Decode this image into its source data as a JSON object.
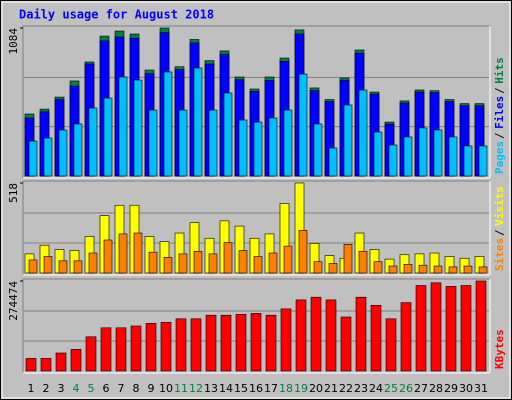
{
  "chart_data": [
    {
      "type": "bar",
      "title": "Daily usage for August 2018",
      "ylim": [
        0,
        1084
      ],
      "yticks": [
        1084
      ],
      "series": [
        {
          "name": "Hits",
          "color": "#008040",
          "values": [
            454,
            490,
            578,
            696,
            835,
            1025,
            1062,
            1040,
            776,
            1084,
            800,
            1000,
            845,
            916,
            725,
            637,
            725,
            864,
            1070,
            645,
            560,
            718,
            923,
            615,
            395,
            550,
            630,
            625,
            560,
            530,
            530
          ]
        },
        {
          "name": "Files",
          "color": "#0000ff",
          "values": [
            425,
            470,
            560,
            659,
            820,
            990,
            1018,
            1010,
            750,
            1050,
            780,
            975,
            820,
            890,
            705,
            620,
            700,
            840,
            1040,
            625,
            545,
            700,
            900,
            600,
            380,
            535,
            615,
            610,
            545,
            515,
            515
          ]
        },
        {
          "name": "Pages",
          "color": "#00c0ff",
          "values": [
            256,
            278,
            337,
            381,
            498,
            571,
            725,
            703,
            483,
            762,
            483,
            791,
            483,
            608,
            410,
            395,
            425,
            483,
            747,
            381,
            205,
            520,
            630,
            322,
            227,
            286,
            352,
            337,
            286,
            220,
            220
          ]
        }
      ]
    },
    {
      "type": "bar",
      "ylim": [
        0,
        518
      ],
      "yticks": [
        518
      ],
      "series": [
        {
          "name": "Visits",
          "color": "#ffff00",
          "values": [
            110,
            160,
            135,
            130,
            210,
            330,
            390,
            390,
            210,
            180,
            230,
            290,
            200,
            300,
            270,
            200,
            225,
            400,
            518,
            170,
            100,
            85,
            230,
            135,
            80,
            105,
            110,
            115,
            95,
            85,
            95
          ]
        },
        {
          "name": "Sites",
          "color": "#ff8000",
          "values": [
            75,
            95,
            70,
            70,
            115,
            190,
            225,
            230,
            120,
            90,
            110,
            125,
            110,
            175,
            130,
            95,
            115,
            155,
            245,
            65,
            55,
            165,
            125,
            65,
            40,
            50,
            45,
            40,
            35,
            40,
            35
          ]
        }
      ]
    },
    {
      "type": "bar",
      "ylim": [
        0,
        274474
      ],
      "yticks": [
        274474
      ],
      "categories": [
        "1",
        "2",
        "3",
        "4",
        "5",
        "6",
        "7",
        "8",
        "9",
        "10",
        "11",
        "12",
        "13",
        "14",
        "15",
        "16",
        "17",
        "18",
        "19",
        "20",
        "21",
        "22",
        "23",
        "24",
        "25",
        "26",
        "27",
        "28",
        "29",
        "30",
        "31"
      ],
      "category_colors": [
        "#000000",
        "#000000",
        "#000000",
        "#008040",
        "#008040",
        "#000000",
        "#000000",
        "#000000",
        "#000000",
        "#000000",
        "#008040",
        "#008040",
        "#000000",
        "#000000",
        "#000000",
        "#000000",
        "#000000",
        "#008040",
        "#008040",
        "#000000",
        "#000000",
        "#000000",
        "#000000",
        "#000000",
        "#008040",
        "#008040",
        "#000000",
        "#000000",
        "#000000",
        "#000000",
        "#000000"
      ],
      "series": [
        {
          "name": "KBytes",
          "color": "#ff0000",
          "values": [
            38426,
            38426,
            54895,
            65874,
            104300,
            131748,
            131748,
            137237,
            145471,
            148216,
            159195,
            159195,
            170174,
            170174,
            172919,
            175663,
            170174,
            189387,
            216834,
            225069,
            216834,
            164684,
            225069,
            200366,
            159195,
            208600,
            260750,
            268985,
            258006,
            260750,
            274474
          ]
        }
      ]
    }
  ]
}
